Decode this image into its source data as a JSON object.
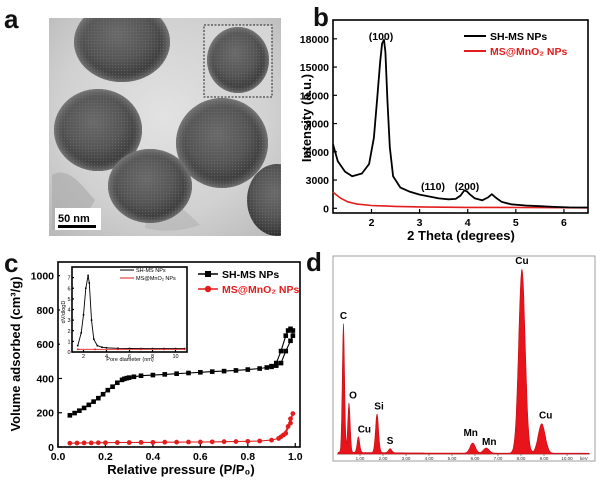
{
  "panels": {
    "a": {
      "label": "a",
      "scale_bar": "50 nm"
    },
    "b": {
      "label": "b"
    },
    "c": {
      "label": "c"
    },
    "d": {
      "label": "d"
    }
  },
  "colors": {
    "black_series": "#000000",
    "red_series": "#e21d1d",
    "eds_fill": "#e8141c"
  },
  "chart_data": [
    {
      "id": "b",
      "type": "line",
      "title": "",
      "xlabel": "2 Theta (degrees)",
      "ylabel": "Intensity (a.u.)",
      "xlim": [
        1.2,
        6.5
      ],
      "ylim": [
        -500,
        20000
      ],
      "xticks": [
        2,
        3,
        4,
        5,
        6
      ],
      "xtick_labels": [
        "2",
        "3",
        "4",
        "5",
        "6"
      ],
      "yticks": [
        0,
        3000,
        6000,
        9000,
        12000,
        15000,
        18000
      ],
      "ytick_labels": [
        "0",
        "3000",
        "6000",
        "9000",
        "12000",
        "15000",
        "18000"
      ],
      "legend": "top-right",
      "series": [
        {
          "name": "SH-MS NPs",
          "color": "#000000",
          "x": [
            1.2,
            1.3,
            1.45,
            1.6,
            1.8,
            1.95,
            2.05,
            2.12,
            2.18,
            2.22,
            2.26,
            2.29,
            2.33,
            2.38,
            2.45,
            2.6,
            2.8,
            3.0,
            3.2,
            3.4,
            3.6,
            3.75,
            3.85,
            3.93,
            3.98,
            4.05,
            4.15,
            4.3,
            4.42,
            4.5,
            4.58,
            4.7,
            4.9,
            5.2,
            5.5,
            5.8,
            6.1,
            6.5
          ],
          "y": [
            6800,
            5000,
            3900,
            3400,
            3700,
            4700,
            7500,
            11800,
            15600,
            17500,
            17900,
            16600,
            11500,
            6500,
            3400,
            2200,
            1750,
            1450,
            1250,
            1050,
            950,
            1000,
            1350,
            1900,
            1800,
            1450,
            1050,
            850,
            1150,
            1500,
            1150,
            700,
            420,
            300,
            220,
            150,
            100,
            80
          ]
        },
        {
          "name": "MS@MnO₂ NPs",
          "color": "#e21d1d",
          "x": [
            1.2,
            1.35,
            1.5,
            1.7,
            2.0,
            2.5,
            3.0,
            3.5,
            4.0,
            4.5,
            5.0,
            5.5,
            6.0,
            6.5
          ],
          "y": [
            1700,
            1100,
            700,
            450,
            300,
            200,
            150,
            120,
            100,
            90,
            80,
            70,
            60,
            50
          ]
        }
      ],
      "annotations": [
        "(100)",
        "(110)",
        "(200)"
      ]
    },
    {
      "id": "c",
      "type": "line",
      "title": "",
      "xlabel": "Relative pressure (P/P₀)",
      "ylabel": "Volume adsorbed (cm³/g)",
      "xlim": [
        0.0,
        1.02
      ],
      "ylim": [
        0,
        1080
      ],
      "xticks": [
        0.0,
        0.2,
        0.4,
        0.6,
        0.8,
        1.0
      ],
      "xtick_labels": [
        "0.0",
        "0.2",
        "0.4",
        "0.6",
        "0.8",
        "1.0"
      ],
      "yticks": [
        0,
        200,
        400,
        600,
        800,
        1000
      ],
      "ytick_labels": [
        "0",
        "200",
        "400",
        "600",
        "800",
        "1000"
      ],
      "legend": "top-right",
      "series": [
        {
          "name": "SH-MS NPs",
          "color": "#000000",
          "marker": "square",
          "x": [
            0.05,
            0.07,
            0.09,
            0.11,
            0.13,
            0.15,
            0.17,
            0.19,
            0.21,
            0.23,
            0.25,
            0.27,
            0.28,
            0.29,
            0.3,
            0.32,
            0.35,
            0.4,
            0.45,
            0.5,
            0.55,
            0.6,
            0.65,
            0.7,
            0.75,
            0.8,
            0.85,
            0.88,
            0.9,
            0.92,
            0.94,
            0.96,
            0.97,
            0.98,
            0.99,
            0.99,
            0.98,
            0.96,
            0.94,
            0.92,
            0.9
          ],
          "y": [
            185,
            198,
            212,
            228,
            246,
            265,
            285,
            308,
            332,
            352,
            375,
            392,
            398,
            402,
            405,
            410,
            416,
            420,
            424,
            428,
            432,
            436,
            440,
            443,
            447,
            452,
            458,
            464,
            472,
            490,
            560,
            650,
            680,
            690,
            680,
            650,
            620,
            560,
            490,
            475,
            468
          ]
        },
        {
          "name": "MS@MnO₂ NPs",
          "color": "#e21d1d",
          "marker": "circle",
          "x": [
            0.05,
            0.08,
            0.11,
            0.14,
            0.17,
            0.2,
            0.25,
            0.3,
            0.35,
            0.4,
            0.45,
            0.5,
            0.55,
            0.6,
            0.65,
            0.7,
            0.75,
            0.8,
            0.85,
            0.9,
            0.93,
            0.95,
            0.97,
            0.98,
            0.99,
            0.98,
            0.96,
            0.94
          ],
          "y": [
            22,
            23,
            24,
            24,
            25,
            25,
            26,
            26,
            27,
            27,
            28,
            28,
            29,
            29,
            30,
            31,
            32,
            33,
            35,
            40,
            50,
            70,
            120,
            165,
            195,
            140,
            80,
            60
          ]
        }
      ]
    },
    {
      "id": "c-inset",
      "type": "line",
      "title": "",
      "xlabel": "Pore diameter (nm)",
      "ylabel": "dV/dlogD",
      "xlim": [
        1,
        11
      ],
      "ylim": [
        0,
        8
      ],
      "xticks": [
        2,
        4,
        6,
        8,
        10
      ],
      "xtick_labels": [
        "2",
        "4",
        "6",
        "8",
        "10"
      ],
      "yticks": [
        0,
        1,
        2,
        3,
        4,
        5,
        6,
        7
      ],
      "ytick_labels": [
        "0",
        "1",
        "2",
        "3",
        "4",
        "5",
        "6",
        "7"
      ],
      "legend": "top",
      "series": [
        {
          "name": "SH-MS NPs",
          "color": "#000000",
          "x": [
            1.5,
            1.8,
            2.0,
            2.2,
            2.4,
            2.5,
            2.7,
            2.9,
            3.2,
            3.6,
            4.0,
            5.0,
            6.0,
            7.0,
            8.0,
            9.0,
            10.0,
            10.8
          ],
          "y": [
            0.6,
            1.8,
            3.5,
            6.0,
            7.2,
            6.5,
            3.0,
            1.2,
            0.6,
            0.45,
            0.4,
            0.35,
            0.33,
            0.32,
            0.32,
            0.32,
            0.32,
            0.32
          ]
        },
        {
          "name": "MS@MnO₂ NPs",
          "color": "#e21d1d",
          "x": [
            1.5,
            3.0,
            5.0,
            7.0,
            9.0,
            10.8
          ],
          "y": [
            0.25,
            0.25,
            0.25,
            0.25,
            0.25,
            0.25
          ]
        }
      ]
    },
    {
      "id": "d",
      "type": "area",
      "title": "",
      "xlabel": "keV",
      "ylabel": "",
      "xlim": [
        0,
        11
      ],
      "ylim": [
        0,
        1000
      ],
      "xticks": [
        1,
        2,
        3,
        4,
        5,
        6,
        7,
        8,
        9,
        10
      ],
      "xtick_labels": [
        "1.00",
        "2.00",
        "3.00",
        "4.00",
        "5.00",
        "6.00",
        "7.00",
        "8.00",
        "9.00",
        "10.00"
      ],
      "peaks": [
        {
          "element": "C",
          "energy": 0.28,
          "height": 700
        },
        {
          "element": "O",
          "energy": 0.52,
          "height": 270
        },
        {
          "element": "Cu",
          "energy": 0.93,
          "height": 85
        },
        {
          "element": "Si",
          "energy": 1.74,
          "height": 210
        },
        {
          "element": "S",
          "energy": 2.31,
          "height": 22
        },
        {
          "element": "Mn",
          "energy": 5.9,
          "height": 55
        },
        {
          "element": "Mn",
          "energy": 6.49,
          "height": 28
        },
        {
          "element": "Cu",
          "energy": 8.04,
          "height": 1000
        },
        {
          "element": "Cu",
          "energy": 8.9,
          "height": 160
        }
      ]
    }
  ]
}
